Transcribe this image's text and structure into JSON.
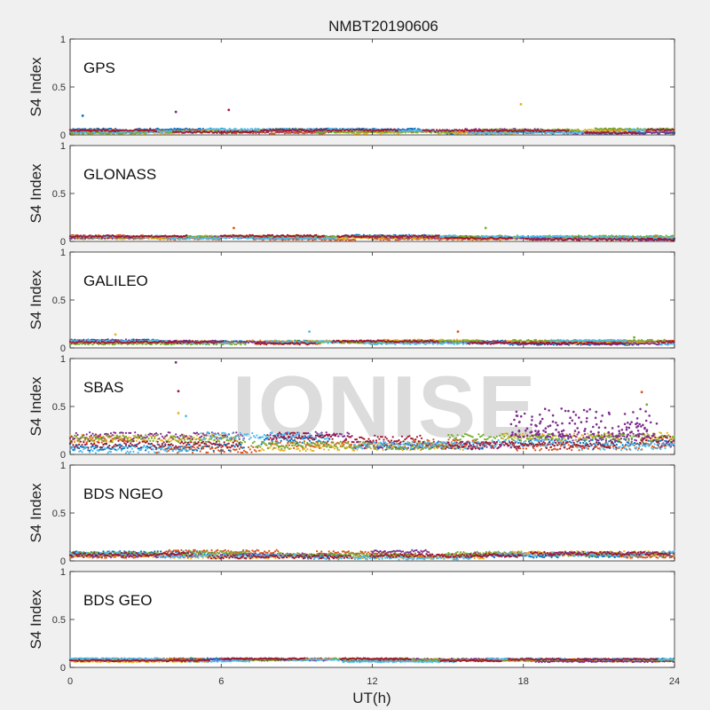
{
  "chart_data": {
    "type": "scatter",
    "title": "NMBT20190606",
    "xlabel": "UT(h)",
    "ylabel": "S4 Index",
    "xlim": [
      0,
      24
    ],
    "ylim": [
      0,
      1
    ],
    "xticks": [
      "0",
      "6",
      "12",
      "18",
      "24"
    ],
    "yticks": [
      "0",
      "0.5",
      "1"
    ],
    "watermark": "IONISE",
    "series_colors": [
      "#0072BD",
      "#D95319",
      "#EDB120",
      "#7E2F8E",
      "#77AC30",
      "#4DBEEE",
      "#A2142F"
    ],
    "panels": [
      {
        "name": "GPS",
        "baseline": [
          0.02,
          0.06
        ],
        "outliers": [
          {
            "x": 0.5,
            "y": 0.2
          },
          {
            "x": 4.2,
            "y": 0.24
          },
          {
            "x": 6.3,
            "y": 0.26
          },
          {
            "x": 17.9,
            "y": 0.32
          }
        ]
      },
      {
        "name": "GLONASS",
        "baseline": [
          0.02,
          0.06
        ],
        "outliers": [
          {
            "x": 6.5,
            "y": 0.14
          },
          {
            "x": 16.5,
            "y": 0.14
          }
        ]
      },
      {
        "name": "GALILEO",
        "baseline": [
          0.04,
          0.08
        ],
        "outliers": [
          {
            "x": 1.8,
            "y": 0.14
          },
          {
            "x": 9.5,
            "y": 0.17
          },
          {
            "x": 15.4,
            "y": 0.17
          },
          {
            "x": 22.4,
            "y": 0.11
          }
        ]
      },
      {
        "name": "SBAS",
        "baseline": [
          0.05,
          0.2
        ],
        "outliers": [
          {
            "x": 4.2,
            "y": 0.96
          },
          {
            "x": 4.3,
            "y": 0.66
          },
          {
            "x": 4.3,
            "y": 0.43
          },
          {
            "x": 4.6,
            "y": 0.4
          },
          {
            "x": 22.7,
            "y": 0.65
          },
          {
            "x": 22.9,
            "y": 0.52
          }
        ],
        "scintillation_burst": {
          "x_range": [
            17.5,
            23.3
          ],
          "y_range": [
            0.18,
            0.48
          ]
        },
        "watermark_visible": true
      },
      {
        "name": "BDS NGEO",
        "baseline": [
          0.03,
          0.1
        ],
        "outliers": []
      },
      {
        "name": "BDS GEO",
        "baseline": [
          0.06,
          0.09
        ],
        "outliers": []
      }
    ],
    "grid": false,
    "legend": "none"
  }
}
